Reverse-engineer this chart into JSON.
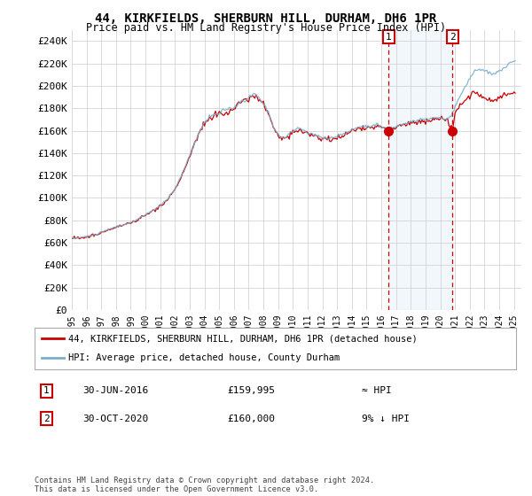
{
  "title": "44, KIRKFIELDS, SHERBURN HILL, DURHAM, DH6 1PR",
  "subtitle": "Price paid vs. HM Land Registry's House Price Index (HPI)",
  "legend_line1": "44, KIRKFIELDS, SHERBURN HILL, DURHAM, DH6 1PR (detached house)",
  "legend_line2": "HPI: Average price, detached house, County Durham",
  "annotation1_date": "30-JUN-2016",
  "annotation1_price": "£159,995",
  "annotation1_hpi": "≈ HPI",
  "annotation2_date": "30-OCT-2020",
  "annotation2_price": "£160,000",
  "annotation2_hpi": "9% ↓ HPI",
  "footer": "Contains HM Land Registry data © Crown copyright and database right 2024.\nThis data is licensed under the Open Government Licence v3.0.",
  "hpi_color": "#7aadcc",
  "price_color": "#cc0000",
  "annotation_color": "#cc0000",
  "shade_color": "#ddeeff",
  "background_color": "#ffffff",
  "grid_color": "#cccccc",
  "ylim": [
    0,
    250000
  ],
  "yticks": [
    0,
    20000,
    40000,
    60000,
    80000,
    100000,
    120000,
    140000,
    160000,
    180000,
    200000,
    220000,
    240000
  ],
  "sale1_year": 2016.5,
  "sale1_price": 159995,
  "sale2_year": 2020.83,
  "sale2_price": 160000,
  "xlim_start": 1995.0,
  "xlim_end": 2025.5
}
